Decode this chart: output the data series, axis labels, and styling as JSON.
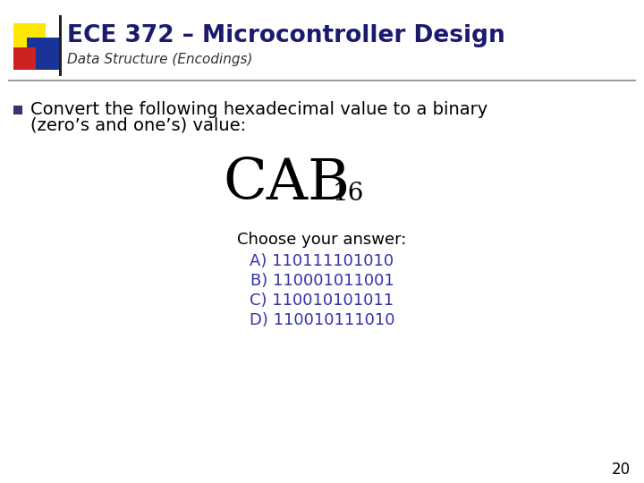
{
  "title": "ECE 372 – Microcontroller Design",
  "subtitle": "Data Structure (Encodings)",
  "bullet_text_line1": "Convert the following hexadecimal value to a binary",
  "bullet_text_line2": "(zero’s and one’s) value:",
  "hex_value": "CAB",
  "hex_subscript": "16",
  "choose_label": "Choose your answer:",
  "answers": [
    "A) 110111101010",
    "B) 110001011001",
    "C) 110010101011",
    "D) 110010111010"
  ],
  "answer_color": "#3333AA",
  "title_color": "#1a1a6e",
  "subtitle_color": "#333333",
  "background_color": "#FFFFFF",
  "page_number": "20",
  "yellow_color": "#FFE800",
  "blue_color": "#1a3399",
  "red_color": "#CC2222",
  "dark_color": "#222222",
  "title_fontsize": 19,
  "subtitle_fontsize": 11,
  "bullet_fontsize": 14,
  "hex_fontsize": 46,
  "hex_sub_fontsize": 20,
  "answer_fontsize": 13,
  "choose_fontsize": 13,
  "page_fontsize": 12
}
